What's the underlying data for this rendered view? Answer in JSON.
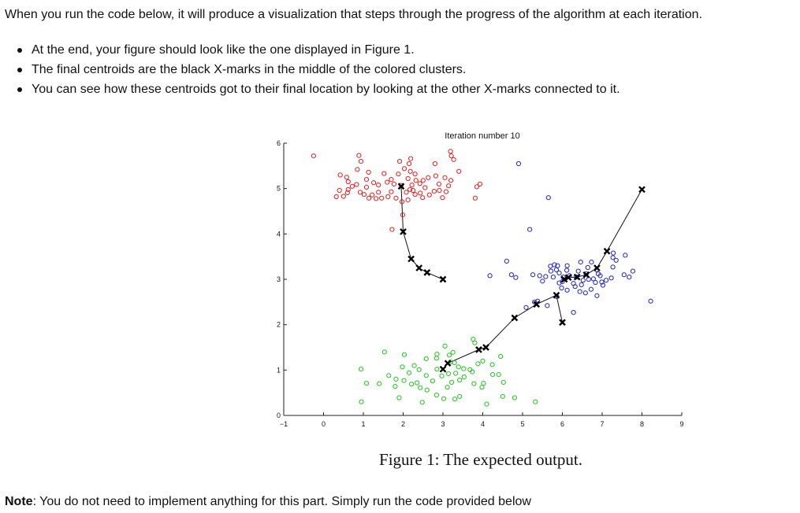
{
  "intro": "When you run the code below, it will produce a visualization that steps through the progress of the algorithm at each iteration.",
  "bullets": [
    "At the end, your figure should look like the one displayed in Figure 1.",
    "The final centroids are the black X-marks in the middle of the colored clusters.",
    "You can see how these centroids got to their final location by looking at the other X-marks connected to it."
  ],
  "caption": "Figure 1: The expected output.",
  "note": {
    "label": "Note",
    "text": ": You do not need to implement anything for this part. Simply run the code provided below"
  },
  "chart_data": {
    "type": "scatter",
    "title": "Iteration number 10",
    "xlim": [
      -1,
      9
    ],
    "ylim": [
      0,
      6
    ],
    "xticks": [
      -1,
      0,
      1,
      2,
      3,
      4,
      5,
      6,
      7,
      8,
      9
    ],
    "yticks": [
      0,
      1,
      2,
      3,
      4,
      5,
      6
    ],
    "grid": false,
    "clusters": [
      {
        "color": "#e8201f",
        "points": [
          [
            -0.25,
            5.72
          ],
          [
            0.89,
            5.73
          ],
          [
            1.91,
            5.6
          ],
          [
            2.15,
            5.55
          ],
          [
            2.19,
            5.66
          ],
          [
            3.19,
            5.82
          ],
          [
            3.27,
            5.64
          ],
          [
            3.21,
            5.72
          ],
          [
            2.8,
            5.55
          ],
          [
            3.4,
            5.38
          ],
          [
            0.94,
            5.6
          ],
          [
            0.42,
            5.3
          ],
          [
            0.58,
            5.25
          ],
          [
            0.62,
            5.15
          ],
          [
            0.85,
            5.42
          ],
          [
            1.08,
            5.2
          ],
          [
            1.13,
            5.36
          ],
          [
            1.26,
            5.13
          ],
          [
            1.38,
            5.08
          ],
          [
            1.52,
            5.33
          ],
          [
            1.6,
            5.14
          ],
          [
            1.7,
            5.2
          ],
          [
            1.77,
            5.1
          ],
          [
            1.88,
            5.32
          ],
          [
            2.03,
            5.44
          ],
          [
            2.12,
            5.22
          ],
          [
            2.18,
            5.38
          ],
          [
            2.22,
            5.08
          ],
          [
            2.32,
            5.18
          ],
          [
            2.42,
            5.11
          ],
          [
            2.5,
            5.18
          ],
          [
            2.63,
            5.24
          ],
          [
            2.82,
            5.28
          ],
          [
            2.9,
            5.1
          ],
          [
            3.05,
            5.24
          ],
          [
            3.14,
            5.06
          ],
          [
            3.2,
            5.18
          ],
          [
            2.08,
            4.92
          ],
          [
            2.17,
            4.98
          ],
          [
            0.4,
            4.96
          ],
          [
            0.62,
            4.98
          ],
          [
            0.72,
            5.05
          ],
          [
            0.6,
            4.91
          ],
          [
            0.83,
            5.09
          ],
          [
            0.92,
            4.92
          ],
          [
            1.02,
            4.87
          ],
          [
            1.08,
            5.03
          ],
          [
            1.14,
            4.79
          ],
          [
            1.22,
            4.86
          ],
          [
            1.32,
            4.78
          ],
          [
            1.38,
            4.92
          ],
          [
            1.46,
            4.79
          ],
          [
            1.62,
            4.82
          ],
          [
            1.7,
            4.93
          ],
          [
            1.82,
            4.79
          ],
          [
            1.97,
            4.71
          ],
          [
            2.12,
            4.75
          ],
          [
            2.3,
            4.87
          ],
          [
            2.43,
            4.9
          ],
          [
            2.49,
            4.8
          ],
          [
            2.66,
            4.86
          ],
          [
            2.78,
            4.94
          ],
          [
            2.91,
            4.96
          ],
          [
            2.99,
            4.8
          ],
          [
            3.08,
            4.93
          ],
          [
            0.32,
            4.82
          ],
          [
            0.5,
            4.83
          ],
          [
            3.93,
            5.1
          ],
          [
            3.85,
            5.04
          ],
          [
            3.81,
            4.79
          ],
          [
            1.72,
            4.1
          ],
          [
            1.99,
            4.42
          ],
          [
            2.3,
            5.32
          ],
          [
            2.55,
            5.02
          ],
          [
            1.95,
            5.07
          ],
          [
            2.25,
            4.96
          ]
        ]
      },
      {
        "color": "#2223d6",
        "points": [
          [
            4.9,
            5.55
          ],
          [
            5.65,
            4.8
          ],
          [
            5.18,
            4.1
          ],
          [
            4.6,
            3.4
          ],
          [
            4.18,
            3.08
          ],
          [
            4.72,
            3.1
          ],
          [
            4.83,
            3.04
          ],
          [
            5.26,
            3.1
          ],
          [
            5.7,
            3.29
          ],
          [
            5.3,
            2.5
          ],
          [
            5.38,
            2.52
          ],
          [
            5.09,
            2.38
          ],
          [
            5.62,
            2.42
          ],
          [
            5.86,
            2.62
          ],
          [
            6.28,
            2.27
          ],
          [
            7.27,
            3.48
          ],
          [
            7.35,
            3.42
          ],
          [
            7.58,
            3.53
          ],
          [
            7.28,
            3.58
          ],
          [
            7.77,
            3.18
          ],
          [
            7.23,
            3.03
          ],
          [
            7.55,
            3.1
          ],
          [
            7.68,
            3.05
          ],
          [
            8.22,
            2.52
          ],
          [
            5.92,
            2.92
          ],
          [
            6.0,
            2.95
          ],
          [
            5.88,
            3.3
          ],
          [
            6.12,
            3.3
          ],
          [
            6.18,
            3.08
          ],
          [
            6.28,
            2.91
          ],
          [
            6.35,
            3.05
          ],
          [
            6.4,
            3.18
          ],
          [
            6.46,
            3.38
          ],
          [
            6.52,
            2.98
          ],
          [
            6.6,
            3.12
          ],
          [
            6.64,
            3.26
          ],
          [
            6.73,
            3.38
          ],
          [
            6.78,
            3.01
          ],
          [
            6.86,
            3.21
          ],
          [
            6.95,
            3.08
          ],
          [
            6.99,
            2.94
          ],
          [
            7.02,
            2.87
          ],
          [
            6.48,
            2.88
          ],
          [
            6.58,
            2.7
          ],
          [
            6.72,
            2.78
          ],
          [
            6.87,
            2.64
          ],
          [
            6.12,
            2.76
          ],
          [
            6.32,
            2.84
          ],
          [
            5.58,
            3.06
          ],
          [
            5.71,
            3.18
          ],
          [
            5.8,
            3.32
          ],
          [
            5.85,
            3.21
          ],
          [
            5.92,
            3.14
          ],
          [
            5.43,
            3.08
          ],
          [
            5.5,
            2.96
          ],
          [
            6.02,
            3.05
          ],
          [
            6.11,
            3.2
          ],
          [
            6.66,
            3.0
          ],
          [
            6.83,
            2.93
          ],
          [
            6.9,
            3.12
          ],
          [
            7.1,
            2.98
          ],
          [
            7.27,
            3.27
          ],
          [
            6.44,
            2.73
          ],
          [
            5.98,
            2.81
          ],
          [
            5.77,
            3.05
          ]
        ]
      },
      {
        "color": "#22c61c",
        "points": [
          [
            3.05,
            1.53
          ],
          [
            3.25,
            1.39
          ],
          [
            2.85,
            1.02
          ],
          [
            3.42,
            0.42
          ],
          [
            4.8,
            0.39
          ],
          [
            5.32,
            0.3
          ],
          [
            4.5,
            0.42
          ],
          [
            3.98,
            0.62
          ],
          [
            4.02,
            0.71
          ],
          [
            4.25,
            0.9
          ],
          [
            4.52,
            0.73
          ],
          [
            3.76,
            1.68
          ],
          [
            3.8,
            1.6
          ],
          [
            4.24,
            1.12
          ],
          [
            4.45,
            1.3
          ],
          [
            4.4,
            0.9
          ],
          [
            0.95,
            0.3
          ],
          [
            0.94,
            1.02
          ],
          [
            1.08,
            0.71
          ],
          [
            1.64,
            0.88
          ],
          [
            1.53,
            1.4
          ],
          [
            1.98,
            1.07
          ],
          [
            2.03,
            1.34
          ],
          [
            2.28,
            1.1
          ],
          [
            2.58,
            1.25
          ],
          [
            2.84,
            1.26
          ],
          [
            3.16,
            1.33
          ],
          [
            3.19,
            1.18
          ],
          [
            3.29,
            1.16
          ],
          [
            3.39,
            1.07
          ],
          [
            3.52,
            1.03
          ],
          [
            3.68,
            1.01
          ],
          [
            2.97,
            0.87
          ],
          [
            3.14,
            0.92
          ],
          [
            3.32,
            0.93
          ],
          [
            3.42,
            0.78
          ],
          [
            3.53,
            0.85
          ],
          [
            3.78,
            0.7
          ],
          [
            2.15,
            0.94
          ],
          [
            2.4,
            1.01
          ],
          [
            2.58,
            0.88
          ],
          [
            2.74,
            0.76
          ],
          [
            1.82,
            0.8
          ],
          [
            2.02,
            0.77
          ],
          [
            2.21,
            0.69
          ],
          [
            2.43,
            0.61
          ],
          [
            2.6,
            0.56
          ],
          [
            2.84,
            0.45
          ],
          [
            3.02,
            0.37
          ],
          [
            3.11,
            0.62
          ],
          [
            3.22,
            0.73
          ],
          [
            1.8,
            0.64
          ],
          [
            2.35,
            0.72
          ],
          [
            1.9,
            0.39
          ],
          [
            2.48,
            0.29
          ],
          [
            3.74,
            0.96
          ],
          [
            3.88,
            1.14
          ],
          [
            4.0,
            1.2
          ],
          [
            3.3,
            0.36
          ],
          [
            1.4,
            0.7
          ],
          [
            2.85,
            1.35
          ],
          [
            4.1,
            0.25
          ]
        ]
      }
    ],
    "centroid_paths": [
      [
        [
          3.0,
          3.0
        ],
        [
          2.6,
          3.15
        ],
        [
          2.4,
          3.25
        ],
        [
          2.2,
          3.45
        ],
        [
          2.0,
          4.05
        ],
        [
          1.95,
          5.05
        ]
      ],
      [
        [
          6.0,
          2.05
        ],
        [
          5.85,
          2.65
        ],
        [
          5.35,
          2.45
        ],
        [
          4.8,
          2.15
        ],
        [
          4.08,
          1.5
        ],
        [
          3.9,
          1.45
        ],
        [
          3.12,
          1.15
        ],
        [
          3.0,
          1.02
        ]
      ],
      [
        [
          8.0,
          4.98
        ],
        [
          7.12,
          3.62
        ],
        [
          6.87,
          3.25
        ],
        [
          6.6,
          3.1
        ],
        [
          6.37,
          3.05
        ],
        [
          6.15,
          3.04
        ],
        [
          6.05,
          3.0
        ]
      ]
    ]
  }
}
